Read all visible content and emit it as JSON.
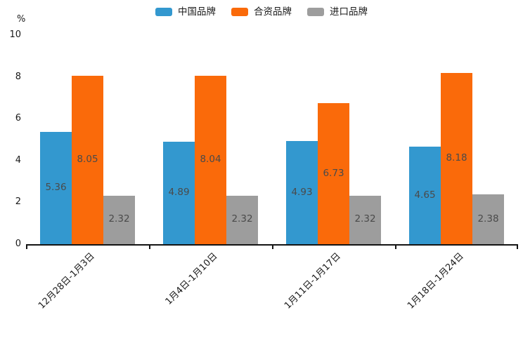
{
  "chart_data": {
    "type": "bar",
    "title": "",
    "categories": [
      "12月28日-1月3日",
      "1月4日-1月10日",
      "1月11日-1月17日",
      "1月18日-1月24日"
    ],
    "series": [
      {
        "name": "中国品牌",
        "color": "#3398cf",
        "values": [
          5.36,
          4.89,
          4.93,
          4.65
        ]
      },
      {
        "name": "合资品牌",
        "color": "#fa6a0a",
        "values": [
          8.05,
          8.04,
          6.73,
          8.18
        ]
      },
      {
        "name": "进口品牌",
        "color": "#9d9d9d",
        "values": [
          2.32,
          2.32,
          2.32,
          2.38
        ]
      }
    ],
    "xlabel": "",
    "ylabel": "%",
    "ylim": [
      0,
      10
    ],
    "yticks": [
      0,
      2,
      4,
      6,
      8,
      10
    ],
    "legend_position": "top",
    "grid": false,
    "value_labels": "inside-center",
    "bar_label_color": "#4a4a4a",
    "axis_color": "#141414"
  }
}
